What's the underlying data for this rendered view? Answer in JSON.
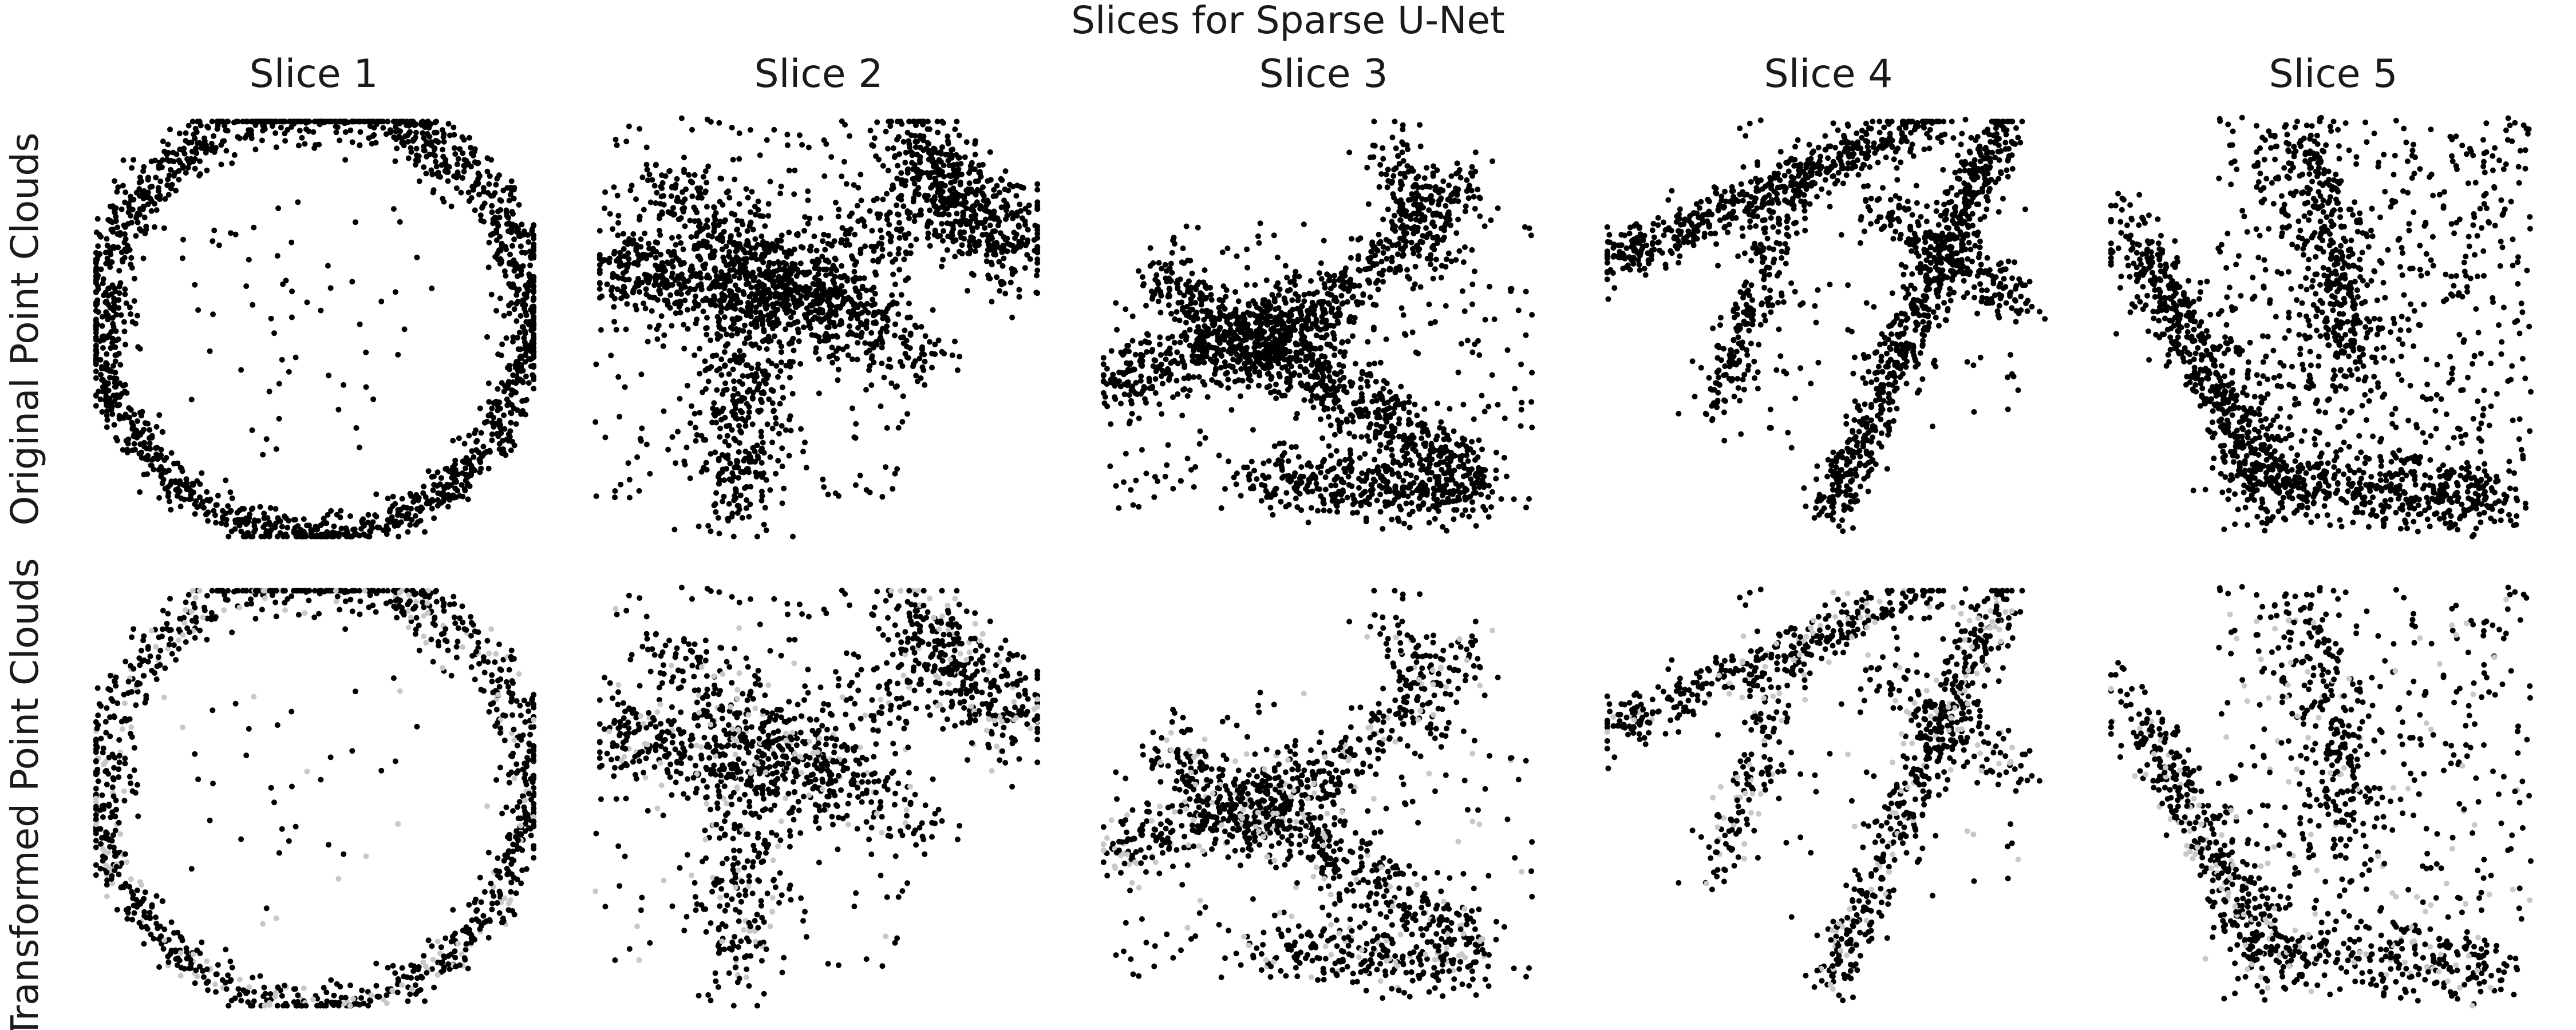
{
  "chart_data": {
    "type": "scatter",
    "title": "Slices for Sparse U-Net",
    "columns": [
      "Slice 1",
      "Slice 2",
      "Slice 3",
      "Slice 4",
      "Slice 5"
    ],
    "rows": [
      "Original Point Clouds",
      "Transformed Point Clouds"
    ],
    "axes_visible": false,
    "grid": false,
    "colors": {
      "points": "#000000",
      "removed_points": "#c8c8c8",
      "background": "#ffffff"
    }
  }
}
